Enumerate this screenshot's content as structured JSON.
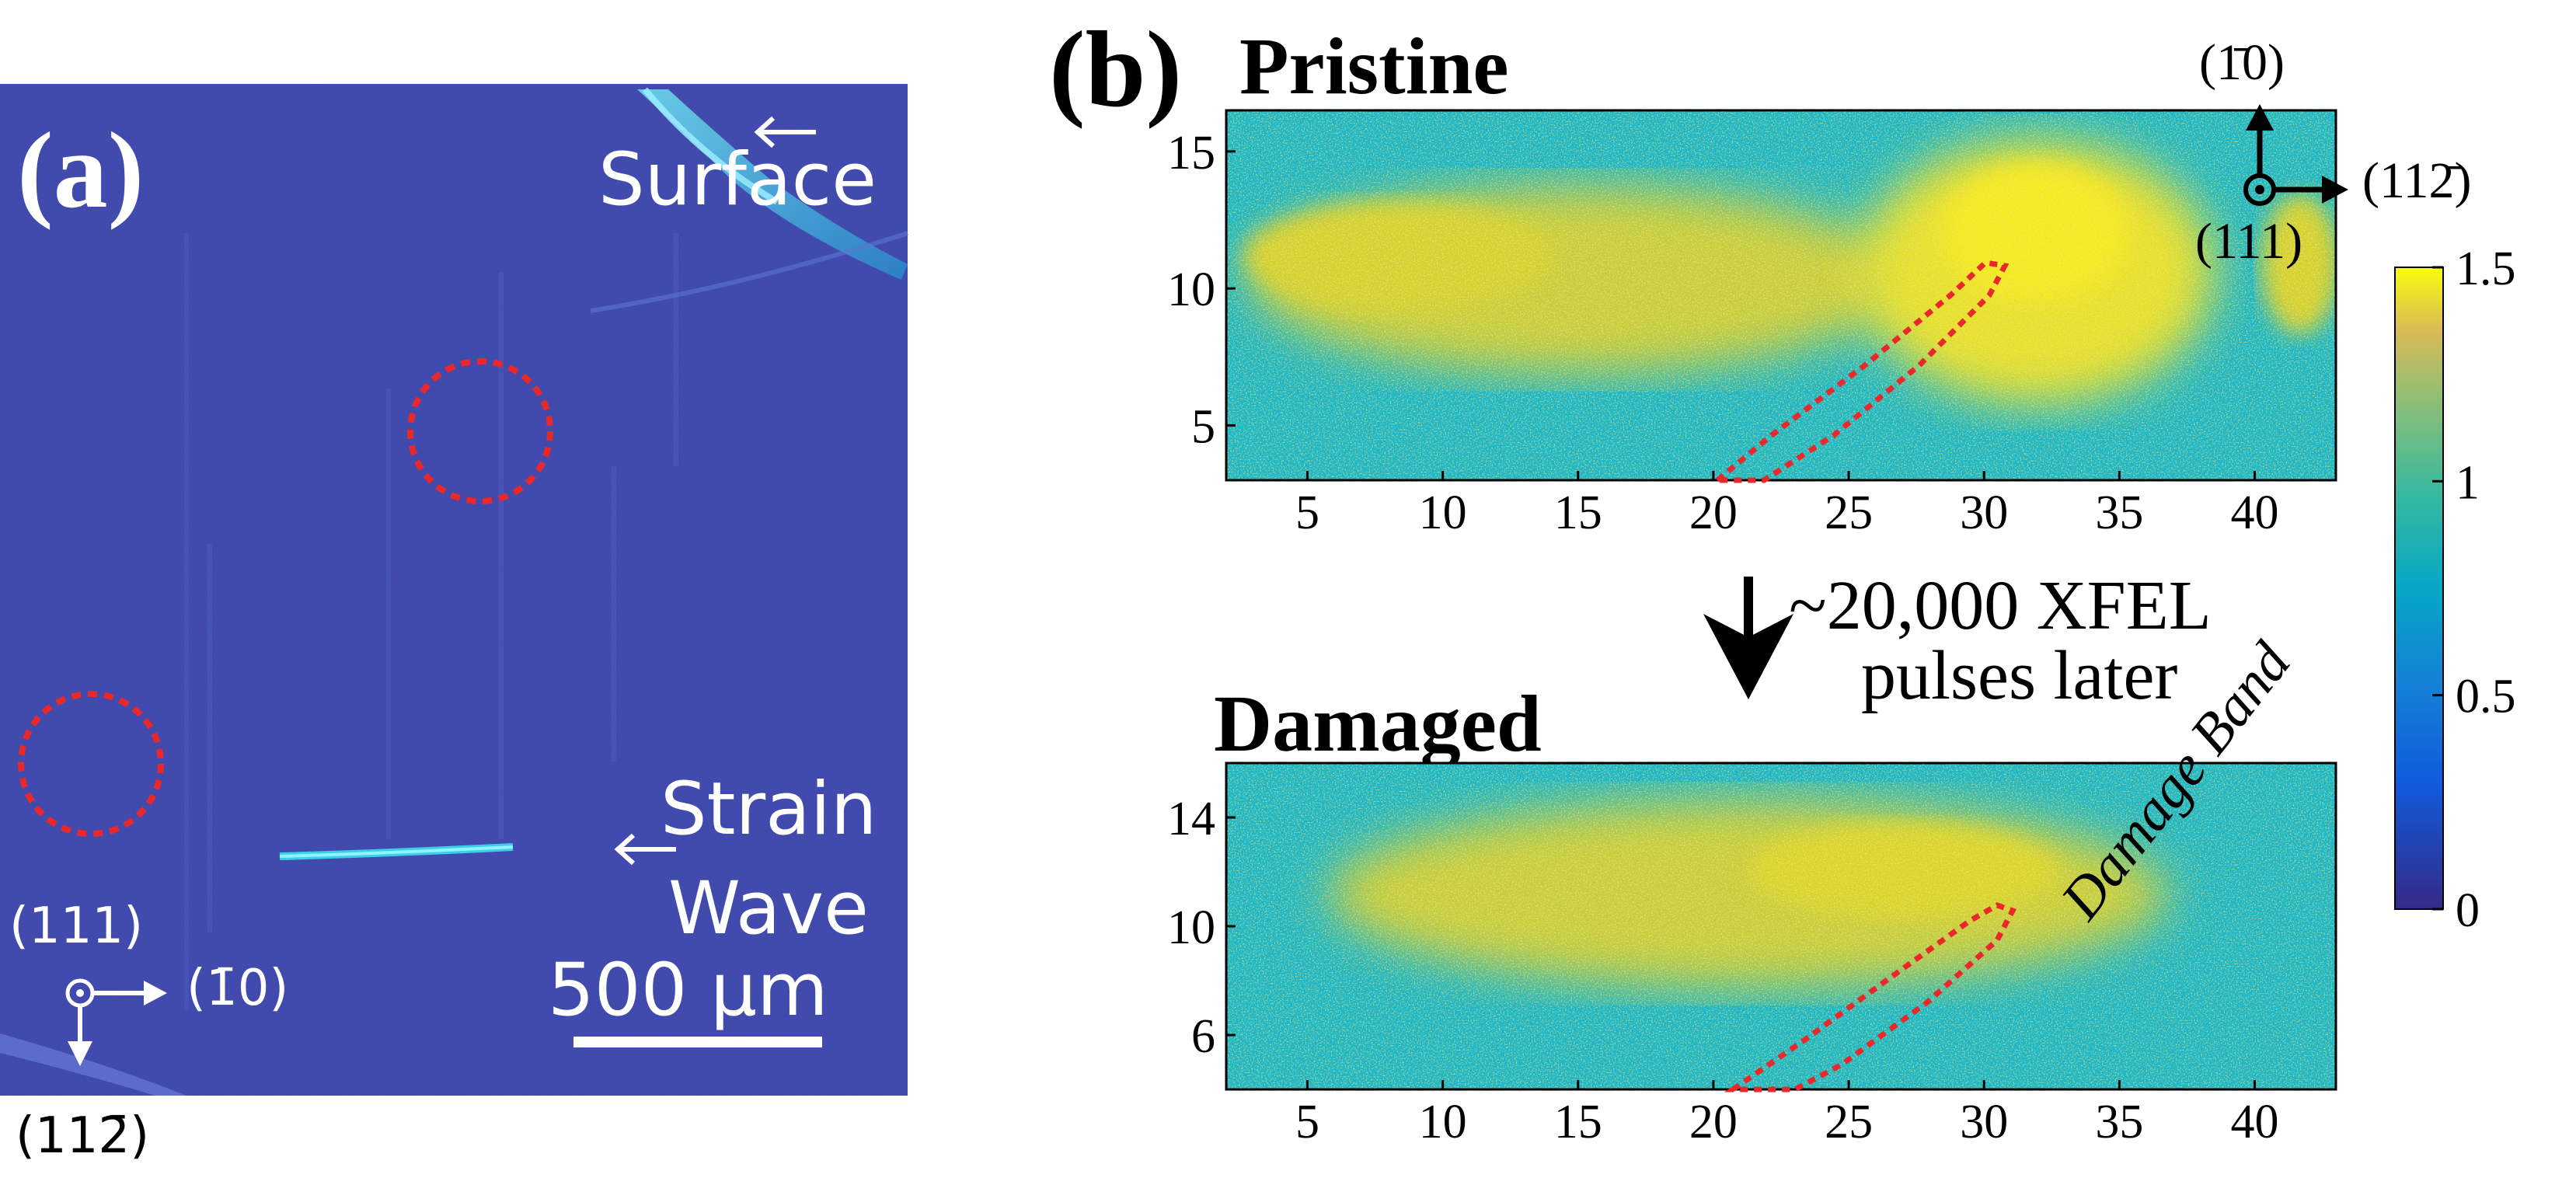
{
  "panel_a": {
    "label": "(a)",
    "surface_label": "Surface",
    "strain_label_1": "Strain",
    "strain_label_2": "Wave",
    "scalebar_label": "500 μm",
    "axes": {
      "out_of_plane": "(111)",
      "right": "(1̄0)",
      "down": "(112̄)"
    }
  },
  "panel_b": {
    "label": "(b)",
    "pristine_title": "Pristine",
    "damaged_title": "Damaged",
    "arrow_label_1": "~20,000 XFEL",
    "arrow_label_2": "pulses later",
    "damage_band_label": "Damage Band",
    "axes": {
      "up": "(1̄0)",
      "right": "(112̄)",
      "out_of_plane": "(111)"
    },
    "colorbar": {
      "ticks": [
        "1.5",
        "1",
        "0.5",
        "0"
      ],
      "range": [
        0,
        1.5
      ]
    }
  },
  "chart_data": [
    {
      "type": "heatmap",
      "title": "Pristine",
      "xlim": [
        2,
        43
      ],
      "ylim": [
        3,
        16.5
      ],
      "x_ticks": [
        "5",
        "10",
        "15",
        "20",
        "25",
        "30",
        "35",
        "40"
      ],
      "y_ticks": [
        "15",
        "10",
        "5"
      ],
      "colormap": "parula",
      "clim": [
        0,
        1.5
      ]
    },
    {
      "type": "heatmap",
      "title": "Damaged",
      "xlim": [
        2,
        43
      ],
      "ylim": [
        4,
        16
      ],
      "x_ticks": [
        "5",
        "10",
        "15",
        "20",
        "25",
        "30",
        "35",
        "40"
      ],
      "y_ticks": [
        "14",
        "10",
        "6"
      ],
      "colormap": "parula",
      "clim": [
        0,
        1.5
      ]
    }
  ],
  "colors": {
    "panel_a_bg": "#3a43a8",
    "cyan": "#19b5c8",
    "yellow": "#d6d12e",
    "bright_yellow": "#f4e51c",
    "red_dash": "#e8282a"
  }
}
